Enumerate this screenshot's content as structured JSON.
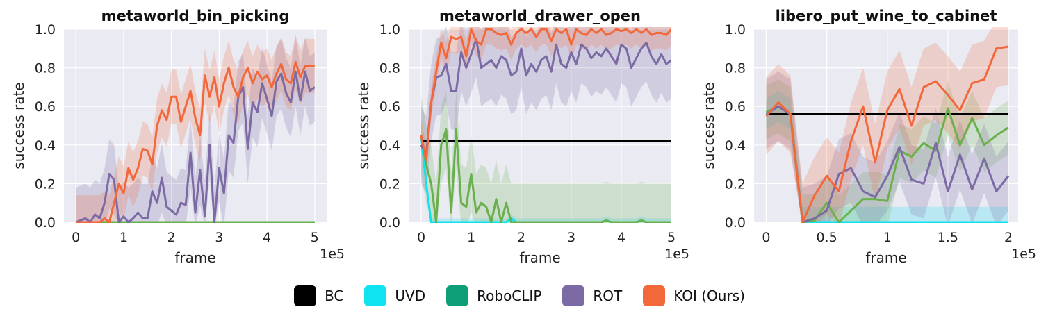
{
  "legend": [
    {
      "label": "BC",
      "color": "#000000"
    },
    {
      "label": "UVD",
      "color": "#10e3f0"
    },
    {
      "label": "RoboCLIP",
      "color": "#0e9e78"
    },
    {
      "label": "ROT",
      "color": "#7b6aa3"
    },
    {
      "label": "KOI (Ours)",
      "color": "#f2683a"
    }
  ],
  "chart_data": [
    {
      "type": "line",
      "title": "metaworld_bin_picking",
      "xlabel": "frame",
      "ylabel": "success rate",
      "x_scale_label": "1e5",
      "xlim": [
        -0.25,
        5.25
      ],
      "ylim": [
        0,
        1
      ],
      "xticks": [
        0,
        1,
        2,
        3,
        4,
        5
      ],
      "xtick_labels": [
        "0",
        "1",
        "2",
        "3",
        "4",
        "5"
      ],
      "yticks": [
        0,
        0.2,
        0.4,
        0.6,
        0.8,
        1.0
      ],
      "ytick_labels": [
        "0.0",
        "0.2",
        "0.4",
        "0.6",
        "0.8",
        "1.0"
      ],
      "grid": true,
      "background": "#eaeaf2",
      "series": [
        {
          "name": "BC",
          "color": "#000000",
          "x": [
            0,
            5
          ],
          "y": [
            0,
            0
          ],
          "band": 0
        },
        {
          "name": "UVD",
          "color": "#10e3f0",
          "x": [
            0,
            5
          ],
          "y": [
            0,
            0
          ],
          "band": 0
        },
        {
          "name": "RoboCLIP",
          "color": "#6ab04c",
          "x": [
            0,
            5
          ],
          "y": [
            0,
            0
          ],
          "band": 0
        },
        {
          "name": "ROT",
          "color": "#7b6aa3",
          "x": [
            0,
            0.2,
            0.3,
            0.4,
            0.5,
            0.6,
            0.7,
            0.8,
            0.9,
            1.0,
            1.1,
            1.2,
            1.3,
            1.4,
            1.5,
            1.6,
            1.7,
            1.8,
            1.9,
            2.0,
            2.1,
            2.2,
            2.3,
            2.4,
            2.5,
            2.6,
            2.7,
            2.8,
            2.9,
            3.0,
            3.1,
            3.2,
            3.3,
            3.4,
            3.5,
            3.6,
            3.7,
            3.8,
            3.9,
            4.0,
            4.1,
            4.2,
            4.3,
            4.4,
            4.5,
            4.6,
            4.7,
            4.8,
            4.9,
            5.0
          ],
          "y": [
            0,
            0.02,
            0.0,
            0.04,
            0.02,
            0.1,
            0.25,
            0.22,
            0.0,
            0.03,
            0.0,
            0.02,
            0.05,
            0.02,
            0.02,
            0.16,
            0.1,
            0.23,
            0.08,
            0.06,
            0.04,
            0.1,
            0.09,
            0.36,
            0.05,
            0.27,
            0.03,
            0.4,
            0.0,
            0.28,
            0.15,
            0.45,
            0.41,
            0.65,
            0.7,
            0.38,
            0.62,
            0.57,
            0.72,
            0.64,
            0.55,
            0.73,
            0.77,
            0.67,
            0.62,
            0.78,
            0.63,
            0.78,
            0.68,
            0.7
          ],
          "band": 0.18
        },
        {
          "name": "KOI (Ours)",
          "color": "#f2683a",
          "x": [
            0,
            0.2,
            0.4,
            0.5,
            0.6,
            0.7,
            0.8,
            0.9,
            1.0,
            1.1,
            1.2,
            1.3,
            1.4,
            1.5,
            1.6,
            1.7,
            1.8,
            1.9,
            2.0,
            2.1,
            2.2,
            2.3,
            2.4,
            2.5,
            2.6,
            2.7,
            2.8,
            2.9,
            3.0,
            3.1,
            3.2,
            3.3,
            3.4,
            3.5,
            3.6,
            3.7,
            3.8,
            3.9,
            4.0,
            4.1,
            4.2,
            4.3,
            4.4,
            4.5,
            4.6,
            4.7,
            4.8,
            4.9,
            5.0
          ],
          "y": [
            0,
            0,
            0,
            0,
            0.02,
            0.0,
            0.1,
            0.2,
            0.15,
            0.28,
            0.22,
            0.28,
            0.38,
            0.37,
            0.3,
            0.5,
            0.58,
            0.53,
            0.65,
            0.65,
            0.52,
            0.6,
            0.68,
            0.54,
            0.45,
            0.76,
            0.65,
            0.75,
            0.6,
            0.72,
            0.8,
            0.7,
            0.65,
            0.75,
            0.8,
            0.72,
            0.78,
            0.74,
            0.76,
            0.7,
            0.77,
            0.82,
            0.74,
            0.72,
            0.83,
            0.75,
            0.81,
            0.81,
            0.81
          ],
          "band": 0.14
        }
      ]
    },
    {
      "type": "line",
      "title": "metaworld_drawer_open",
      "xlabel": "frame",
      "ylabel": "success rate",
      "x_scale_label": "1e5",
      "xlim": [
        -0.25,
        5.0
      ],
      "ylim": [
        0,
        1
      ],
      "xticks": [
        0,
        1,
        2,
        3,
        4,
        5
      ],
      "xtick_labels": [
        "0",
        "1",
        "2",
        "3",
        "4",
        "5"
      ],
      "yticks": [
        0,
        0.2,
        0.4,
        0.6,
        0.8,
        1.0
      ],
      "ytick_labels": [
        "0.0",
        "0.2",
        "0.4",
        "0.6",
        "0.8",
        "1.0"
      ],
      "grid": true,
      "background": "#eaeaf2",
      "series": [
        {
          "name": "BC",
          "color": "#000000",
          "x": [
            0,
            5
          ],
          "y": [
            0.42,
            0.42
          ],
          "band": 0
        },
        {
          "name": "UVD",
          "color": "#10e3f0",
          "x": [
            0,
            0.1,
            0.2,
            0.3,
            1.5,
            1.7,
            1.8,
            1.9,
            2.0,
            3.6,
            3.7,
            3.8,
            4.3,
            4.4,
            4.5,
            5.0
          ],
          "y": [
            0.45,
            0.2,
            0.0,
            0.0,
            0.0,
            0.0,
            0.02,
            0.0,
            0.0,
            0.0,
            0.01,
            0.0,
            0.0,
            0.01,
            0.0,
            0.0
          ],
          "band": 0.02
        },
        {
          "name": "RoboCLIP",
          "color": "#6ab04c",
          "x": [
            0,
            0.1,
            0.2,
            0.3,
            0.4,
            0.5,
            0.6,
            0.7,
            0.8,
            0.9,
            1.0,
            1.1,
            1.2,
            1.3,
            1.4,
            1.5,
            1.6,
            1.7,
            1.8,
            1.9,
            2.0,
            3.6,
            3.7,
            3.8,
            4.3,
            4.4,
            4.5,
            5.0
          ],
          "y": [
            0.45,
            0.3,
            0.2,
            0.0,
            0.4,
            0.48,
            0.05,
            0.48,
            0.1,
            0.08,
            0.25,
            0.05,
            0.1,
            0.08,
            0.0,
            0.12,
            0.0,
            0.1,
            0.0,
            0.0,
            0.0,
            0.0,
            0.01,
            0.0,
            0.0,
            0.01,
            0.0,
            0.0
          ],
          "band": 0.2
        },
        {
          "name": "ROT",
          "color": "#7b6aa3",
          "x": [
            0,
            0.1,
            0.2,
            0.3,
            0.4,
            0.5,
            0.6,
            0.7,
            0.8,
            0.9,
            1.0,
            1.1,
            1.2,
            1.3,
            1.4,
            1.5,
            1.6,
            1.7,
            1.8,
            1.9,
            2.0,
            2.1,
            2.2,
            2.3,
            2.4,
            2.5,
            2.6,
            2.7,
            2.8,
            2.9,
            3.0,
            3.1,
            3.2,
            3.3,
            3.4,
            3.5,
            3.6,
            3.7,
            3.8,
            3.9,
            4.0,
            4.1,
            4.2,
            4.3,
            4.4,
            4.5,
            4.6,
            4.7,
            4.8,
            4.9,
            5.0
          ],
          "y": [
            0.4,
            0.35,
            0.62,
            0.75,
            0.76,
            0.82,
            0.68,
            0.68,
            0.88,
            0.8,
            0.87,
            0.95,
            0.8,
            0.82,
            0.84,
            0.8,
            0.86,
            0.84,
            0.76,
            0.78,
            0.9,
            0.76,
            0.82,
            0.78,
            0.84,
            0.86,
            0.78,
            0.92,
            0.82,
            0.8,
            0.88,
            0.82,
            0.92,
            0.9,
            0.85,
            0.88,
            0.86,
            0.9,
            0.86,
            0.82,
            0.92,
            0.9,
            0.8,
            0.85,
            0.9,
            0.93,
            0.86,
            0.82,
            0.87,
            0.82,
            0.84
          ],
          "band": 0.2
        },
        {
          "name": "KOI (Ours)",
          "color": "#f2683a",
          "x": [
            0,
            0.1,
            0.2,
            0.3,
            0.4,
            0.5,
            0.6,
            0.7,
            0.8,
            0.9,
            1.0,
            1.1,
            1.2,
            1.3,
            1.4,
            1.5,
            1.6,
            1.7,
            1.8,
            1.9,
            2.0,
            2.1,
            2.2,
            2.3,
            2.4,
            2.5,
            2.6,
            2.7,
            2.8,
            2.9,
            3.0,
            3.1,
            3.2,
            3.3,
            3.4,
            3.5,
            3.6,
            3.7,
            3.8,
            3.9,
            4.0,
            4.1,
            4.2,
            4.3,
            4.4,
            4.5,
            4.6,
            4.7,
            4.8,
            4.9,
            5.0
          ],
          "y": [
            0.45,
            0.32,
            0.62,
            0.78,
            0.93,
            0.85,
            0.96,
            0.95,
            0.96,
            0.86,
            1.0,
            0.94,
            0.92,
            1.0,
            1.0,
            0.98,
            0.97,
            0.98,
            0.92,
            0.98,
            1.0,
            0.98,
            1.0,
            0.96,
            1.0,
            1.0,
            0.94,
            1.0,
            0.98,
            1.0,
            0.92,
            1.0,
            0.98,
            0.97,
            1.0,
            0.98,
            1.0,
            0.97,
            0.98,
            1.0,
            0.99,
            1.0,
            0.98,
            1.0,
            0.98,
            1.0,
            0.97,
            0.98,
            0.98,
            0.97,
            1.0
          ],
          "band": 0.08
        }
      ]
    },
    {
      "type": "line",
      "title": "libero_put_wine_to_cabinet",
      "xlabel": "frame",
      "ylabel": "success rate",
      "x_scale_label": "1e5",
      "xlim": [
        -0.1,
        2.08
      ],
      "ylim": [
        0,
        1
      ],
      "xticks": [
        0,
        0.5,
        1,
        1.5,
        2
      ],
      "xtick_labels": [
        "0",
        "0.5",
        "1",
        "1.5",
        "2"
      ],
      "yticks": [
        0,
        0.2,
        0.4,
        0.6,
        0.8,
        1.0
      ],
      "ytick_labels": [
        "0.0",
        "0.2",
        "0.4",
        "0.6",
        "0.8",
        "1.0"
      ],
      "grid": true,
      "background": "#eaeaf2",
      "series": [
        {
          "name": "BC",
          "color": "#000000",
          "x": [
            0,
            2
          ],
          "y": [
            0.56,
            0.56
          ],
          "band": 0
        },
        {
          "name": "UVD",
          "color": "#10e3f0",
          "x": [
            0,
            0.1,
            0.2,
            0.3,
            2.0
          ],
          "y": [
            0.56,
            0.6,
            0.56,
            0.0,
            0.0
          ],
          "band": 0.08
        },
        {
          "name": "RoboCLIP",
          "color": "#6ab04c",
          "x": [
            0,
            0.1,
            0.2,
            0.3,
            0.4,
            0.5,
            0.6,
            0.7,
            0.8,
            0.9,
            1.0,
            1.1,
            1.2,
            1.3,
            1.4,
            1.5,
            1.6,
            1.7,
            1.8,
            1.9,
            2.0
          ],
          "y": [
            0.57,
            0.6,
            0.56,
            0.0,
            0.01,
            0.1,
            0.0,
            0.06,
            0.12,
            0.12,
            0.11,
            0.37,
            0.34,
            0.41,
            0.37,
            0.59,
            0.4,
            0.54,
            0.4,
            0.45,
            0.49
          ],
          "band": 0.14
        },
        {
          "name": "ROT",
          "color": "#7b6aa3",
          "x": [
            0,
            0.1,
            0.2,
            0.3,
            0.4,
            0.5,
            0.6,
            0.7,
            0.8,
            0.9,
            1.0,
            1.1,
            1.2,
            1.3,
            1.4,
            1.5,
            1.6,
            1.7,
            1.8,
            1.9,
            2.0
          ],
          "y": [
            0.56,
            0.6,
            0.56,
            0.0,
            0.02,
            0.06,
            0.25,
            0.28,
            0.16,
            0.13,
            0.24,
            0.39,
            0.22,
            0.2,
            0.41,
            0.16,
            0.35,
            0.17,
            0.33,
            0.16,
            0.24
          ],
          "band": 0.18
        },
        {
          "name": "KOI (Ours)",
          "color": "#f2683a",
          "x": [
            0,
            0.1,
            0.2,
            0.3,
            0.4,
            0.5,
            0.6,
            0.7,
            0.8,
            0.9,
            1.0,
            1.1,
            1.2,
            1.3,
            1.4,
            1.5,
            1.6,
            1.7,
            1.8,
            1.9,
            2.0
          ],
          "y": [
            0.55,
            0.62,
            0.56,
            0.0,
            0.14,
            0.24,
            0.16,
            0.42,
            0.6,
            0.31,
            0.58,
            0.69,
            0.5,
            0.7,
            0.73,
            0.66,
            0.58,
            0.72,
            0.74,
            0.9,
            0.91
          ],
          "band": 0.2
        }
      ]
    }
  ]
}
